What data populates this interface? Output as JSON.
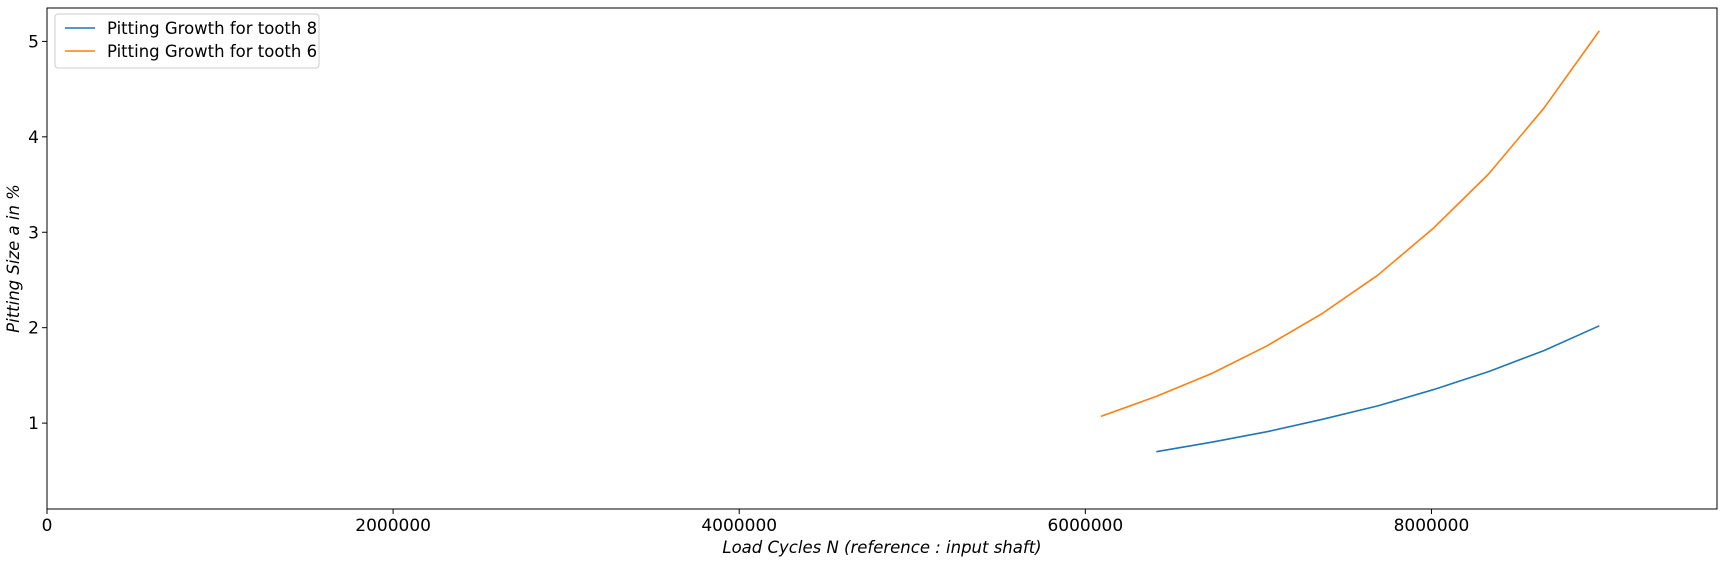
{
  "chart_data": {
    "type": "line",
    "title": "",
    "xlabel": "Load Cycles N (reference :  input shaft)",
    "ylabel": "Pitting Size a in %",
    "xlim": [
      0,
      9650000
    ],
    "ylim": [
      0.1,
      5.35
    ],
    "x_ticks": [
      0,
      2000000,
      4000000,
      6000000,
      8000000
    ],
    "x_tick_labels": [
      "0",
      "2000000",
      "4000000",
      "6000000",
      "8000000"
    ],
    "y_ticks": [
      1,
      2,
      3,
      4,
      5
    ],
    "y_tick_labels": [
      "1",
      "2",
      "3",
      "4",
      "5"
    ],
    "grid": false,
    "legend_position": "top-left",
    "series": [
      {
        "name": "Pitting Growth for tooth 8",
        "color": "#1f77b4",
        "x": [
          6410000,
          6730000,
          7050000,
          7370000,
          7690000,
          8010000,
          8330000,
          8650000,
          8970000
        ],
        "y": [
          0.7,
          0.8,
          0.91,
          1.04,
          1.18,
          1.35,
          1.54,
          1.76,
          2.02
        ]
      },
      {
        "name": "Pitting Growth for tooth 6",
        "color": "#ff7f0e",
        "x": [
          6090000,
          6410000,
          6730000,
          7050000,
          7370000,
          7690000,
          8010000,
          8330000,
          8650000,
          8970000
        ],
        "y": [
          1.07,
          1.28,
          1.52,
          1.81,
          2.15,
          2.55,
          3.04,
          3.61,
          4.3,
          5.11
        ]
      }
    ]
  }
}
